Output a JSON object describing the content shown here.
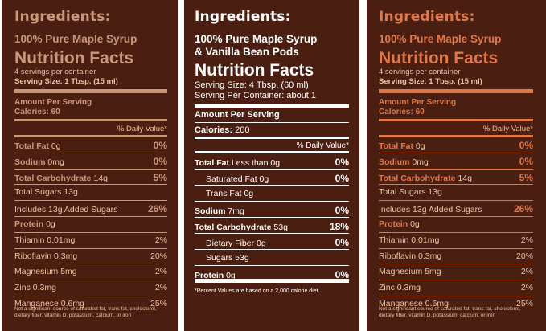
{
  "colors": {
    "background": "#4a1e10",
    "panel1_accent": "#c9977a",
    "panel3_accent": "#df7848",
    "text_light": "#ecc39f",
    "text_white": "#ffffff"
  },
  "panel1": {
    "ingredients": "Ingredients:",
    "product": "100% Pure Maple Syrup",
    "title": "Nutrition Facts",
    "servings": "4 servings per container",
    "serving_size": "Serving Size: 1 Tbsp. (15 ml)",
    "amount_per_serving": "Amount Per Serving",
    "calories": "Calories: 60",
    "daily_value": "% Daily Value*",
    "rows": [
      {
        "label_b": "Total Fat",
        "label": " 0g",
        "value": "0%"
      },
      {
        "label_b": "Sodium",
        "label": " 0mg",
        "value": "0%"
      },
      {
        "label_b": "Total Carbohydrate",
        "label": " 14g",
        "value": "5%"
      },
      {
        "label_b": "",
        "label": "Total Sugars 13g",
        "value": ""
      },
      {
        "label_b": "",
        "label": "Includes 13g Added Sugars",
        "value": "26%"
      },
      {
        "label_b": "Protein",
        "label": " 0g",
        "value": ""
      },
      {
        "label_b": "",
        "label": "Thiamin 0.01mg",
        "value": "2%"
      },
      {
        "label_b": "",
        "label": "Riboflavin 0.3mg",
        "value": "20%"
      },
      {
        "label_b": "",
        "label": "Magnesium 5mg",
        "value": "2%"
      },
      {
        "label_b": "",
        "label": "Zinc 0.3mg",
        "value": "2%"
      },
      {
        "label_b": "",
        "label": "Manganese 0.6mg",
        "value": "25%"
      }
    ],
    "footnote": "Not a significant source of saturated fat, trans fat, cholesterol, dietary fiber, vitamin D, potassium, calcium, or iron"
  },
  "panel2": {
    "ingredients": "Ingredients:",
    "product_line1": "100% Pure Maple Syrup",
    "product_line2": "& Vanilla Bean Pods",
    "title": "Nutrition Facts",
    "serving_size": "Serving Size: 4 Tbsp. (60 ml)",
    "servings_per": "Serving Per Container: about 1",
    "amount_per_serving": "Amount Per Serving",
    "calories_label": "Calories:",
    "calories_value": "200",
    "daily_value": "% Daily Value*",
    "rows": [
      {
        "label_b": "Total Fat",
        "label": " Less than 0g",
        "value": "0%",
        "indent": false
      },
      {
        "label_b": "",
        "label": "Saturated Fat 0g",
        "value": "0%",
        "indent": true
      },
      {
        "label_b": "",
        "label": "Trans Fat 0g",
        "value": "",
        "indent": true
      },
      {
        "label_b": "Sodium",
        "label": " 7mg",
        "value": "0%",
        "indent": false
      },
      {
        "label_b": "Total Carbohydrate",
        "label": " 53g",
        "value": "18%",
        "indent": false
      },
      {
        "label_b": "",
        "label": "Dietary Fiber 0g",
        "value": "0%",
        "indent": true
      },
      {
        "label_b": "",
        "label": "Sugars 53g",
        "value": "",
        "indent": true
      },
      {
        "label_b": "Protein",
        "label": " 0g",
        "value": "0%",
        "indent": false
      }
    ],
    "footnote": "*Percent Values are based on a 2,000 calorie diet."
  },
  "panel3": {
    "ingredients": "Ingredients:",
    "product": "100% Pure Maple Syrup",
    "title": "Nutrition Facts",
    "servings": "4 servings per container",
    "serving_size": "Serving Size: 1 Tbsp. (15 ml)",
    "amount_per_serving": "Amount Per Serving",
    "calories": "Calories: 60",
    "daily_value": "% Daily Value*",
    "rows": [
      {
        "label_b": "Total Fat",
        "label": " 0g",
        "value": "0%"
      },
      {
        "label_b": "Sodium",
        "label": " 0mg",
        "value": "0%"
      },
      {
        "label_b": "Total Carbohydrate",
        "label": " 14g",
        "value": "5%"
      },
      {
        "label_b": "",
        "label": "Total Sugars 13g",
        "value": ""
      },
      {
        "label_b": "",
        "label": "Includes 13g Added Sugars",
        "value": "26%"
      },
      {
        "label_b": "Protein",
        "label": " 0g",
        "value": ""
      },
      {
        "label_b": "",
        "label": "Thiamin 0.01mg",
        "value": "2%"
      },
      {
        "label_b": "",
        "label": "Riboflavin 0.3mg",
        "value": "20%"
      },
      {
        "label_b": "",
        "label": "Magnesium 5mg",
        "value": "2%"
      },
      {
        "label_b": "",
        "label": "Zinc 0.3mg",
        "value": "2%"
      },
      {
        "label_b": "",
        "label": "Manganese 0.6mg",
        "value": "25%"
      }
    ],
    "footnote": "Not a significant source of saturated fat, trans fat, cholesterol, dietary fiber, vitamin D, potassium, calcium, or iron"
  }
}
